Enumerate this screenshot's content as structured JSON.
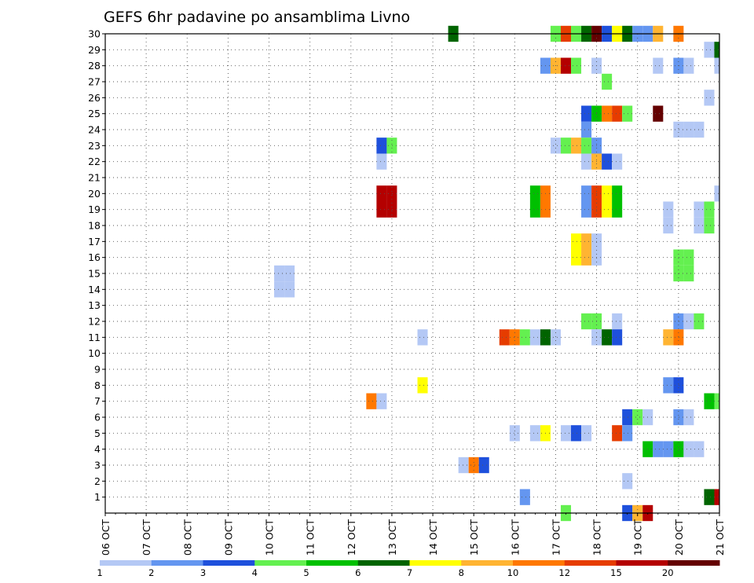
{
  "chart_data": {
    "type": "heatmap",
    "title": "GEFS 6hr padavine po ansamblima Livno",
    "x_tick_labels": [
      "06 OCT",
      "07 OCT",
      "08 OCT",
      "09 OCT",
      "10 OCT",
      "11 OCT",
      "12 OCT",
      "13 OCT",
      "14 OCT",
      "15 OCT",
      "16 OCT",
      "17 OCT",
      "18 OCT",
      "19 OCT",
      "20 OCT",
      "21 OCT"
    ],
    "y_tick_labels": [
      "1",
      "2",
      "3",
      "4",
      "5",
      "6",
      "7",
      "8",
      "9",
      "10",
      "11",
      "12",
      "13",
      "14",
      "15",
      "16",
      "17",
      "18",
      "19",
      "20",
      "21",
      "22",
      "23",
      "24",
      "25",
      "26",
      "27",
      "28",
      "29",
      "30"
    ],
    "x_range_days": [
      6,
      21
    ],
    "y_range": [
      0,
      30
    ],
    "step_hours": 6,
    "grid": true,
    "legend_placement": "bottom",
    "color_scale": {
      "colors": [
        "#b4c8f5",
        "#6496f0",
        "#1e50dc",
        "#64f050",
        "#00c000",
        "#006400",
        "#ffff00",
        "#ffb432",
        "#ff7800",
        "#e63c00",
        "#b40000",
        "#640000"
      ],
      "labels": [
        "1",
        "2",
        "3",
        "4",
        "5",
        "6",
        "7",
        "8",
        "10",
        "12",
        "15",
        "20"
      ]
    },
    "cells": [
      {
        "m": 30,
        "t": "14 OCT 12Z",
        "c": 6
      },
      {
        "m": 30,
        "t": "17 OCT 00Z",
        "c": 4
      },
      {
        "m": 30,
        "t": "17 OCT 06Z",
        "c": 10
      },
      {
        "m": 30,
        "t": "17 OCT 12Z",
        "c": 4
      },
      {
        "m": 30,
        "t": "17 OCT 18Z",
        "c": 6
      },
      {
        "m": 30,
        "t": "18 OCT 00Z",
        "c": 12
      },
      {
        "m": 30,
        "t": "18 OCT 06Z",
        "c": 3
      },
      {
        "m": 30,
        "t": "18 OCT 12Z",
        "c": 7
      },
      {
        "m": 30,
        "t": "18 OCT 18Z",
        "c": 6
      },
      {
        "m": 30,
        "t": "19 OCT 00Z",
        "c": 2
      },
      {
        "m": 30,
        "t": "19 OCT 06Z",
        "c": 2
      },
      {
        "m": 30,
        "t": "19 OCT 12Z",
        "c": 8
      },
      {
        "m": 30,
        "t": "20 OCT 00Z",
        "c": 9
      },
      {
        "m": 29,
        "t": "20 OCT 18Z",
        "c": 1
      },
      {
        "m": 29,
        "t": "21 OCT 00Z",
        "c": 6
      },
      {
        "m": 28,
        "t": "16 OCT 18Z",
        "c": 2
      },
      {
        "m": 28,
        "t": "17 OCT 00Z",
        "c": 8
      },
      {
        "m": 28,
        "t": "17 OCT 06Z",
        "c": 11
      },
      {
        "m": 28,
        "t": "17 OCT 12Z",
        "c": 4
      },
      {
        "m": 28,
        "t": "18 OCT 00Z",
        "c": 1
      },
      {
        "m": 28,
        "t": "19 OCT 12Z",
        "c": 1
      },
      {
        "m": 28,
        "t": "20 OCT 00Z",
        "c": 2
      },
      {
        "m": 28,
        "t": "20 OCT 06Z",
        "c": 1
      },
      {
        "m": 28,
        "t": "21 OCT 00Z",
        "c": 1
      },
      {
        "m": 27,
        "t": "18 OCT 06Z",
        "c": 4
      },
      {
        "m": 26,
        "t": "20 OCT 18Z",
        "c": 1
      },
      {
        "m": 25,
        "t": "17 OCT 18Z",
        "c": 3
      },
      {
        "m": 25,
        "t": "18 OCT 00Z",
        "c": 5
      },
      {
        "m": 25,
        "t": "18 OCT 06Z",
        "c": 9
      },
      {
        "m": 25,
        "t": "18 OCT 12Z",
        "c": 10
      },
      {
        "m": 25,
        "t": "18 OCT 18Z",
        "c": 4
      },
      {
        "m": 25,
        "t": "19 OCT 12Z",
        "c": 12
      },
      {
        "m": 24,
        "t": "17 OCT 18Z",
        "c": 2
      },
      {
        "m": 24,
        "t": "20 OCT 00Z",
        "c": 1
      },
      {
        "m": 24,
        "t": "20 OCT 06Z",
        "c": 1
      },
      {
        "m": 24,
        "t": "20 OCT 12Z",
        "c": 1
      },
      {
        "m": 23,
        "t": "12 OCT 18Z",
        "c": 3
      },
      {
        "m": 23,
        "t": "13 OCT 00Z",
        "c": 4
      },
      {
        "m": 23,
        "t": "17 OCT 00Z",
        "c": 1
      },
      {
        "m": 23,
        "t": "17 OCT 06Z",
        "c": 4
      },
      {
        "m": 23,
        "t": "17 OCT 12Z",
        "c": 8
      },
      {
        "m": 23,
        "t": "17 OCT 18Z",
        "c": 4
      },
      {
        "m": 23,
        "t": "18 OCT 00Z",
        "c": 2
      },
      {
        "m": 22,
        "t": "12 OCT 18Z",
        "c": 1
      },
      {
        "m": 22,
        "t": "17 OCT 18Z",
        "c": 1
      },
      {
        "m": 22,
        "t": "18 OCT 00Z",
        "c": 8
      },
      {
        "m": 22,
        "t": "18 OCT 06Z",
        "c": 3
      },
      {
        "m": 22,
        "t": "18 OCT 12Z",
        "c": 1
      },
      {
        "m": 20,
        "t": "12 OCT 18Z",
        "c": 11
      },
      {
        "m": 20,
        "t": "13 OCT 00Z",
        "c": 11
      },
      {
        "m": 20,
        "t": "16 OCT 12Z",
        "c": 5
      },
      {
        "m": 20,
        "t": "16 OCT 18Z",
        "c": 9
      },
      {
        "m": 20,
        "t": "17 OCT 18Z",
        "c": 2
      },
      {
        "m": 20,
        "t": "18 OCT 00Z",
        "c": 10
      },
      {
        "m": 20,
        "t": "18 OCT 06Z",
        "c": 7
      },
      {
        "m": 20,
        "t": "18 OCT 12Z",
        "c": 5
      },
      {
        "m": 20,
        "t": "21 OCT 00Z",
        "c": 1
      },
      {
        "m": 19,
        "t": "12 OCT 18Z",
        "c": 11
      },
      {
        "m": 19,
        "t": "13 OCT 00Z",
        "c": 11
      },
      {
        "m": 19,
        "t": "16 OCT 12Z",
        "c": 5
      },
      {
        "m": 19,
        "t": "16 OCT 18Z",
        "c": 9
      },
      {
        "m": 19,
        "t": "17 OCT 18Z",
        "c": 2
      },
      {
        "m": 19,
        "t": "18 OCT 00Z",
        "c": 10
      },
      {
        "m": 19,
        "t": "18 OCT 06Z",
        "c": 7
      },
      {
        "m": 19,
        "t": "18 OCT 12Z",
        "c": 5
      },
      {
        "m": 19,
        "t": "19 OCT 18Z",
        "c": 1
      },
      {
        "m": 19,
        "t": "20 OCT 12Z",
        "c": 1
      },
      {
        "m": 19,
        "t": "20 OCT 18Z",
        "c": 4
      },
      {
        "m": 18,
        "t": "19 OCT 18Z",
        "c": 1
      },
      {
        "m": 18,
        "t": "20 OCT 12Z",
        "c": 1
      },
      {
        "m": 18,
        "t": "20 OCT 18Z",
        "c": 4
      },
      {
        "m": 17,
        "t": "17 OCT 12Z",
        "c": 7
      },
      {
        "m": 17,
        "t": "17 OCT 18Z",
        "c": 8
      },
      {
        "m": 17,
        "t": "18 OCT 00Z",
        "c": 1
      },
      {
        "m": 16,
        "t": "17 OCT 12Z",
        "c": 7
      },
      {
        "m": 16,
        "t": "17 OCT 18Z",
        "c": 8
      },
      {
        "m": 16,
        "t": "18 OCT 00Z",
        "c": 1
      },
      {
        "m": 16,
        "t": "20 OCT 00Z",
        "c": 4
      },
      {
        "m": 16,
        "t": "20 OCT 06Z",
        "c": 4
      },
      {
        "m": 15,
        "t": "10 OCT 06Z",
        "c": 1
      },
      {
        "m": 15,
        "t": "10 OCT 12Z",
        "c": 1
      },
      {
        "m": 15,
        "t": "20 OCT 00Z",
        "c": 4
      },
      {
        "m": 15,
        "t": "20 OCT 06Z",
        "c": 4
      },
      {
        "m": 14,
        "t": "10 OCT 06Z",
        "c": 1
      },
      {
        "m": 14,
        "t": "10 OCT 12Z",
        "c": 1
      },
      {
        "m": 12,
        "t": "17 OCT 18Z",
        "c": 4
      },
      {
        "m": 12,
        "t": "18 OCT 00Z",
        "c": 4
      },
      {
        "m": 12,
        "t": "18 OCT 12Z",
        "c": 1
      },
      {
        "m": 12,
        "t": "20 OCT 00Z",
        "c": 2
      },
      {
        "m": 12,
        "t": "20 OCT 06Z",
        "c": 1
      },
      {
        "m": 12,
        "t": "20 OCT 12Z",
        "c": 4
      },
      {
        "m": 11,
        "t": "13 OCT 18Z",
        "c": 1
      },
      {
        "m": 11,
        "t": "15 OCT 18Z",
        "c": 10
      },
      {
        "m": 11,
        "t": "16 OCT 00Z",
        "c": 9
      },
      {
        "m": 11,
        "t": "16 OCT 06Z",
        "c": 4
      },
      {
        "m": 11,
        "t": "16 OCT 12Z",
        "c": 1
      },
      {
        "m": 11,
        "t": "16 OCT 18Z",
        "c": 6
      },
      {
        "m": 11,
        "t": "17 OCT 00Z",
        "c": 1
      },
      {
        "m": 11,
        "t": "18 OCT 00Z",
        "c": 1
      },
      {
        "m": 11,
        "t": "18 OCT 06Z",
        "c": 6
      },
      {
        "m": 11,
        "t": "18 OCT 12Z",
        "c": 3
      },
      {
        "m": 11,
        "t": "19 OCT 18Z",
        "c": 8
      },
      {
        "m": 11,
        "t": "20 OCT 00Z",
        "c": 9
      },
      {
        "m": 8,
        "t": "13 OCT 18Z",
        "c": 7
      },
      {
        "m": 8,
        "t": "19 OCT 18Z",
        "c": 2
      },
      {
        "m": 8,
        "t": "20 OCT 00Z",
        "c": 3
      },
      {
        "m": 7,
        "t": "12 OCT 12Z",
        "c": 9
      },
      {
        "m": 7,
        "t": "12 OCT 18Z",
        "c": 1
      },
      {
        "m": 7,
        "t": "20 OCT 18Z",
        "c": 5
      },
      {
        "m": 7,
        "t": "21 OCT 00Z",
        "c": 4
      },
      {
        "m": 6,
        "t": "18 OCT 18Z",
        "c": 3
      },
      {
        "m": 6,
        "t": "19 OCT 00Z",
        "c": 4
      },
      {
        "m": 6,
        "t": "19 OCT 06Z",
        "c": 1
      },
      {
        "m": 6,
        "t": "20 OCT 00Z",
        "c": 2
      },
      {
        "m": 6,
        "t": "20 OCT 06Z",
        "c": 1
      },
      {
        "m": 5,
        "t": "16 OCT 00Z",
        "c": 1
      },
      {
        "m": 5,
        "t": "16 OCT 12Z",
        "c": 1
      },
      {
        "m": 5,
        "t": "16 OCT 18Z",
        "c": 7
      },
      {
        "m": 5,
        "t": "17 OCT 06Z",
        "c": 1
      },
      {
        "m": 5,
        "t": "17 OCT 12Z",
        "c": 3
      },
      {
        "m": 5,
        "t": "17 OCT 18Z",
        "c": 1
      },
      {
        "m": 5,
        "t": "18 OCT 12Z",
        "c": 10
      },
      {
        "m": 5,
        "t": "18 OCT 18Z",
        "c": 2
      },
      {
        "m": 4,
        "t": "19 OCT 06Z",
        "c": 5
      },
      {
        "m": 4,
        "t": "19 OCT 12Z",
        "c": 2
      },
      {
        "m": 4,
        "t": "19 OCT 18Z",
        "c": 2
      },
      {
        "m": 4,
        "t": "20 OCT 00Z",
        "c": 5
      },
      {
        "m": 4,
        "t": "20 OCT 06Z",
        "c": 1
      },
      {
        "m": 4,
        "t": "20 OCT 12Z",
        "c": 1
      },
      {
        "m": 3,
        "t": "14 OCT 18Z",
        "c": 1
      },
      {
        "m": 3,
        "t": "15 OCT 00Z",
        "c": 9
      },
      {
        "m": 3,
        "t": "15 OCT 06Z",
        "c": 3
      },
      {
        "m": 2,
        "t": "18 OCT 18Z",
        "c": 1
      },
      {
        "m": 1,
        "t": "16 OCT 06Z",
        "c": 2
      },
      {
        "m": 1,
        "t": "20 OCT 18Z",
        "c": 6
      },
      {
        "m": 1,
        "t": "21 OCT 00Z",
        "c": 11
      },
      {
        "m": 0,
        "t": "17 OCT 06Z",
        "c": 4
      },
      {
        "m": 0,
        "t": "18 OCT 18Z",
        "c": 3
      },
      {
        "m": 0,
        "t": "19 OCT 00Z",
        "c": 8
      },
      {
        "m": 0,
        "t": "19 OCT 06Z",
        "c": 11
      }
    ]
  }
}
